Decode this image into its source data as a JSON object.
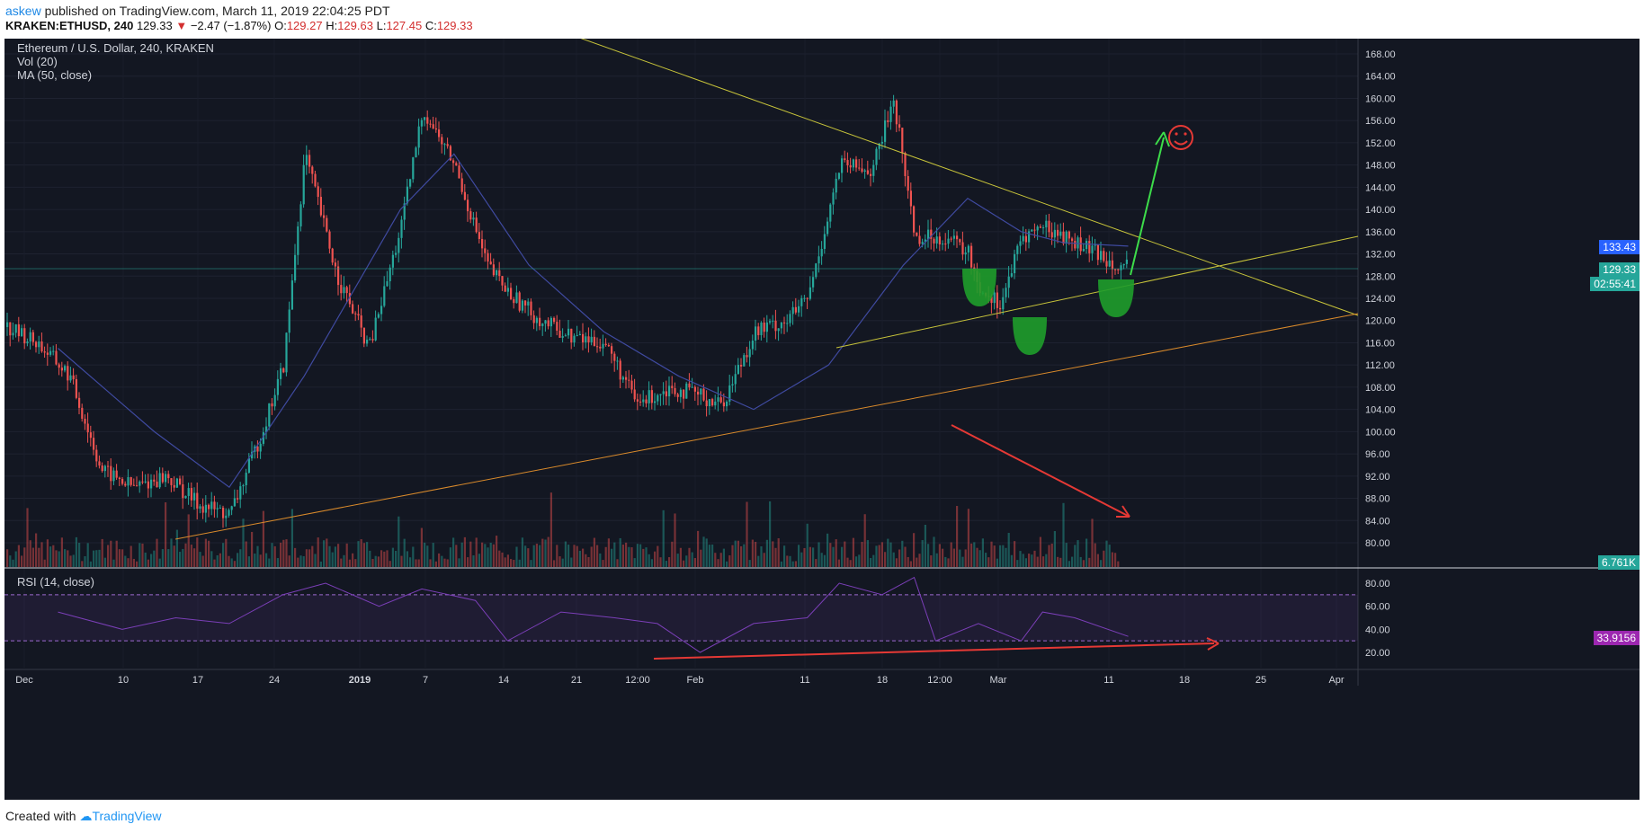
{
  "header": {
    "author": "askew",
    "published": "published on TradingView.com, March 11, 2019 22:04:25 PDT",
    "symbol": "KRAKEN:ETHUSD, 240",
    "last": "129.33",
    "change_arrow": "▼",
    "change": "−2.47 (−1.87%)",
    "o_label": "O:",
    "o": "129.27",
    "h_label": "H:",
    "h": "129.63",
    "l_label": "L:",
    "l": "127.45",
    "c_label": "C:",
    "c": "129.33"
  },
  "legend": {
    "title": "Ethereum / U.S. Dollar, 240, KRAKEN",
    "vol": "Vol (20)",
    "ma": "MA (50, close)",
    "rsi": "RSI (14, close)"
  },
  "tags": {
    "ma_value": "133.43",
    "price": "129.33",
    "countdown": "02:55:41",
    "volume": "6.761K",
    "rsi": "33.9156"
  },
  "footer": {
    "created": "Created with",
    "brand": "TradingView"
  },
  "colors": {
    "background": "#131722",
    "up": "#26a69a",
    "down": "#ef5350",
    "ma": "#3f4aa0",
    "rsi": "#7b3fb8",
    "trendline": "#c7c33a",
    "support": "#d98a2b",
    "annotation_red": "#e53935",
    "annotation_green": "#4caf50"
  },
  "chart_data": [
    {
      "type": "candlestick",
      "title": "Ethereum / U.S. Dollar, 240, KRAKEN",
      "x_ticks": [
        "Dec",
        "10",
        "17",
        "24",
        "2019",
        "7",
        "14",
        "21",
        "12:00",
        "Feb",
        "11",
        "18",
        "12:00",
        "Mar",
        "11",
        "18",
        "25",
        "Apr"
      ],
      "y_ticks": [
        80,
        84,
        88,
        92,
        96,
        100,
        104,
        108,
        112,
        116,
        120,
        124,
        128,
        132,
        136,
        140,
        144,
        148,
        152,
        156,
        160,
        164,
        168
      ],
      "ylim": [
        78,
        170
      ],
      "series": [
        {
          "name": "ETHUSD close (approx.)",
          "x": [
            "Nov 26",
            "Nov 29",
            "Dec 2",
            "Dec 5",
            "Dec 8",
            "Dec 11",
            "Dec 14",
            "Dec 17",
            "Dec 20",
            "Dec 22",
            "Dec 24",
            "Dec 27",
            "Dec 30",
            "Jan 2",
            "Jan 4",
            "Jan 7",
            "Jan 10",
            "Jan 12",
            "Jan 15",
            "Jan 18",
            "Jan 21",
            "Jan 24",
            "Jan 27",
            "Jan 29",
            "Feb 1",
            "Feb 4",
            "Feb 7",
            "Feb 9",
            "Feb 12",
            "Feb 15",
            "Feb 17",
            "Feb 19",
            "Feb 22",
            "Feb 24",
            "Feb 25",
            "Feb 27",
            "Mar 1",
            "Mar 3",
            "Mar 5",
            "Mar 8",
            "Mar 11"
          ],
          "values": [
            119,
            116,
            110,
            93,
            90,
            92,
            87,
            85,
            100,
            112,
            150,
            128,
            115,
            137,
            158,
            148,
            130,
            125,
            120,
            117,
            116,
            105,
            108,
            107,
            105,
            118,
            120,
            124,
            148,
            147,
            160,
            135,
            135,
            132,
            126,
            123,
            135,
            137,
            135,
            132,
            129.3
          ]
        },
        {
          "name": "MA (50, close)",
          "x": [
            "Dec 1",
            "Dec 10",
            "Dec 17",
            "Dec 24",
            "Jan 2",
            "Jan 7",
            "Jan 14",
            "Jan 21",
            "Jan 28",
            "Feb 4",
            "Feb 11",
            "Feb 18",
            "Feb 24",
            "Mar 1",
            "Mar 5",
            "Mar 11"
          ],
          "values": [
            115,
            100,
            90,
            110,
            140,
            150,
            130,
            118,
            110,
            104,
            112,
            130,
            142,
            136,
            134,
            133.4
          ]
        }
      ],
      "annotations": [
        {
          "type": "hline",
          "y": 129.33
        }
      ]
    },
    {
      "type": "bar",
      "title": "Vol (20)",
      "last_value": "6.761K"
    },
    {
      "type": "line",
      "title": "RSI (14, close)",
      "y_ticks": [
        20,
        40,
        60,
        80
      ],
      "ylim": [
        15,
        88
      ],
      "bands": [
        30,
        70
      ],
      "x": [
        "Dec 1",
        "Dec 7",
        "Dec 12",
        "Dec 17",
        "Dec 22",
        "Dec 26",
        "Dec 31",
        "Jan 4",
        "Jan 9",
        "Jan 12",
        "Jan 17",
        "Jan 22",
        "Jan 26",
        "Jan 30",
        "Feb 4",
        "Feb 9",
        "Feb 12",
        "Feb 16",
        "Feb 19",
        "Feb 21",
        "Feb 25",
        "Mar 1",
        "Mar 3",
        "Mar 6",
        "Mar 11"
      ],
      "values": [
        55,
        40,
        50,
        45,
        70,
        80,
        60,
        75,
        65,
        30,
        55,
        50,
        45,
        20,
        45,
        50,
        80,
        70,
        85,
        30,
        45,
        30,
        55,
        50,
        33.9
      ]
    }
  ]
}
